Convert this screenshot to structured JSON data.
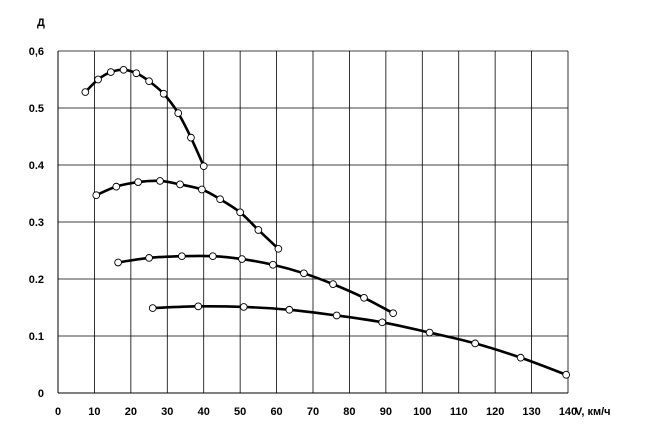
{
  "chart_data": {
    "type": "line",
    "ylabel": "Д",
    "xlabel": "V, км/ч",
    "xlim": [
      0,
      140
    ],
    "ylim": [
      0,
      0.6
    ],
    "x_ticks": [
      "0",
      "10",
      "20",
      "30",
      "40",
      "50",
      "60",
      "70",
      "80",
      "90",
      "100",
      "110",
      "120",
      "130",
      "140"
    ],
    "y_ticks": [
      "0",
      "0.1",
      "0.2",
      "0.3",
      "0.4",
      "0.5",
      "0,6"
    ],
    "grid": true,
    "legend": "none",
    "line_color": "#000000",
    "marker_fill": "#ffffff",
    "series": [
      {
        "x": [
          7.5,
          11,
          14.5,
          18,
          21.5,
          25,
          29,
          33,
          36.5,
          40
        ],
        "y": [
          0.528,
          0.55,
          0.563,
          0.567,
          0.561,
          0.547,
          0.525,
          0.491,
          0.448,
          0.398
        ]
      },
      {
        "x": [
          10.5,
          16,
          22,
          28,
          33.5,
          39.5,
          44.5,
          50,
          55,
          60.5
        ],
        "y": [
          0.347,
          0.362,
          0.37,
          0.372,
          0.366,
          0.357,
          0.34,
          0.317,
          0.286,
          0.253
        ]
      },
      {
        "x": [
          16.5,
          25,
          34,
          42.5,
          50.5,
          59,
          67.5,
          75.5,
          84,
          92
        ],
        "y": [
          0.229,
          0.237,
          0.24,
          0.24,
          0.235,
          0.225,
          0.21,
          0.191,
          0.167,
          0.14
        ]
      },
      {
        "x": [
          26,
          38.5,
          51,
          63.5,
          76.5,
          89,
          102,
          114.5,
          127,
          139.5
        ],
        "y": [
          0.149,
          0.152,
          0.151,
          0.146,
          0.136,
          0.124,
          0.106,
          0.087,
          0.062,
          0.032
        ]
      }
    ]
  }
}
